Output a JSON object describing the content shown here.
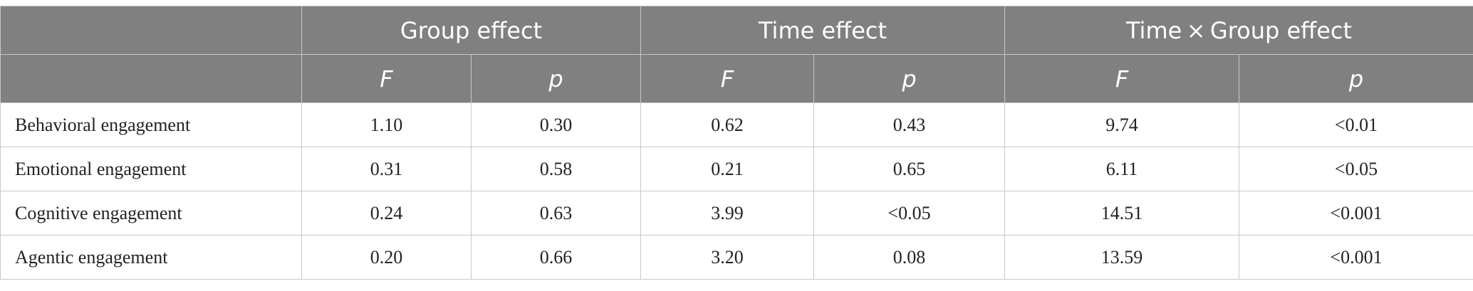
{
  "table": {
    "group_headers": [
      "Group effect",
      "Time effect",
      "Time × Group effect"
    ],
    "sub_headers": [
      "F",
      "p",
      "F",
      "p",
      "F",
      "p"
    ],
    "rows": [
      {
        "label": "Behavioral engagement",
        "values": [
          "1.10",
          "0.30",
          "0.62",
          "0.43",
          "9.74",
          "<0.01"
        ]
      },
      {
        "label": "Emotional engagement",
        "values": [
          "0.31",
          "0.58",
          "0.21",
          "0.65",
          "6.11",
          "<0.05"
        ]
      },
      {
        "label": "Cognitive engagement",
        "values": [
          "0.24",
          "0.63",
          "3.99",
          "<0.05",
          "14.51",
          "<0.001"
        ]
      },
      {
        "label": "Agentic engagement",
        "values": [
          "0.20",
          "0.66",
          "3.20",
          "0.08",
          "13.59",
          "<0.001"
        ]
      }
    ]
  }
}
